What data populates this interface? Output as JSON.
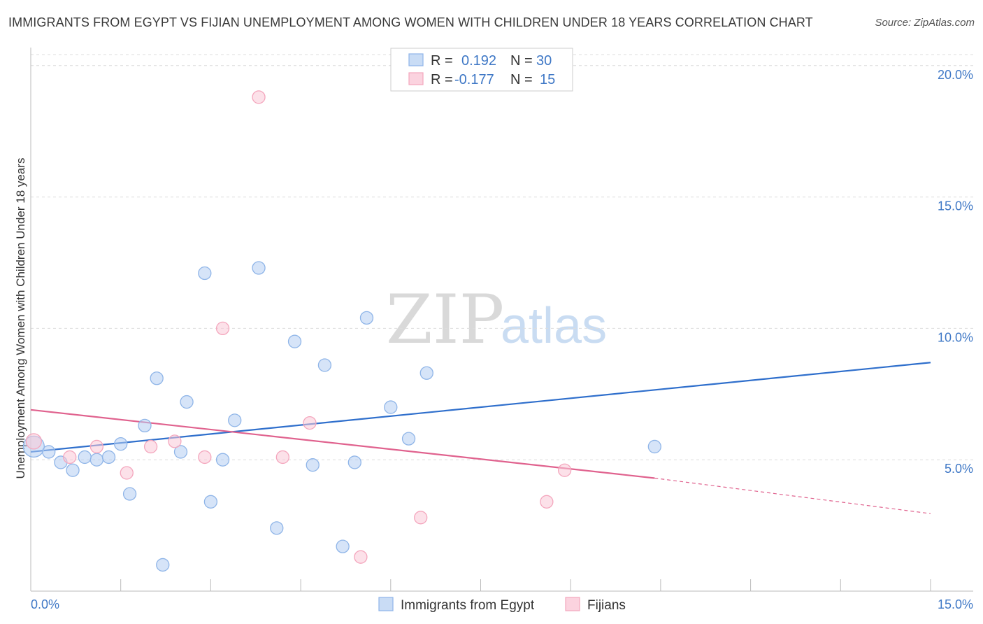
{
  "chart_data": {
    "type": "scatter",
    "title": "IMMIGRANTS FROM EGYPT VS FIJIAN UNEMPLOYMENT AMONG WOMEN WITH CHILDREN UNDER 18 YEARS CORRELATION CHART",
    "source": "Source: ZipAtlas.com",
    "xlabel": "",
    "ylabel": "Unemployment Among Women with Children Under 18 years",
    "xlim": [
      0,
      15
    ],
    "ylim": [
      0,
      20.5
    ],
    "x_tick_labels": [
      "0.0%",
      "15.0%"
    ],
    "y_ticks": [
      5,
      10,
      15,
      20
    ],
    "y_tick_labels": [
      "5.0%",
      "10.0%",
      "15.0%",
      "20.0%"
    ],
    "grid": "horizontal dashed",
    "legend_placement": "top-center",
    "series": [
      {
        "name": "Immigrants from Egypt",
        "color": "#8fb5e8",
        "line_color": "#2f6fcc",
        "r": "0.192",
        "n": "30",
        "points": [
          [
            0.05,
            5.5
          ],
          [
            0.3,
            5.3
          ],
          [
            0.5,
            4.9
          ],
          [
            0.7,
            4.6
          ],
          [
            0.9,
            5.1
          ],
          [
            1.1,
            5.0
          ],
          [
            1.3,
            5.1
          ],
          [
            1.5,
            5.6
          ],
          [
            1.65,
            3.7
          ],
          [
            1.9,
            6.3
          ],
          [
            2.1,
            8.1
          ],
          [
            2.2,
            1.0
          ],
          [
            2.5,
            5.3
          ],
          [
            2.6,
            7.2
          ],
          [
            2.9,
            12.1
          ],
          [
            3.0,
            3.4
          ],
          [
            3.2,
            5.0
          ],
          [
            3.4,
            6.5
          ],
          [
            3.8,
            12.3
          ],
          [
            4.1,
            2.4
          ],
          [
            4.4,
            9.5
          ],
          [
            4.7,
            4.8
          ],
          [
            4.9,
            8.6
          ],
          [
            5.2,
            1.7
          ],
          [
            5.4,
            4.9
          ],
          [
            5.6,
            10.4
          ],
          [
            6.0,
            7.0
          ],
          [
            6.3,
            5.8
          ],
          [
            6.6,
            8.3
          ],
          [
            10.4,
            5.5
          ]
        ],
        "trend": {
          "x": [
            0,
            15
          ],
          "y": [
            5.3,
            8.7
          ]
        }
      },
      {
        "name": "Fijians",
        "color": "#f4a6bd",
        "line_color": "#e0628e",
        "r": "-0.177",
        "n": "15",
        "points": [
          [
            0.05,
            5.7
          ],
          [
            0.65,
            5.1
          ],
          [
            1.1,
            5.5
          ],
          [
            1.6,
            4.5
          ],
          [
            2.0,
            5.5
          ],
          [
            2.4,
            5.7
          ],
          [
            2.9,
            5.1
          ],
          [
            3.2,
            10.0
          ],
          [
            3.8,
            18.8
          ],
          [
            4.2,
            5.1
          ],
          [
            4.65,
            6.4
          ],
          [
            5.5,
            1.3
          ],
          [
            6.5,
            2.8
          ],
          [
            8.6,
            3.4
          ],
          [
            8.9,
            4.6
          ]
        ],
        "trend": {
          "x": [
            0,
            10.4
          ],
          "y": [
            6.9,
            4.3
          ]
        },
        "trend_dashed": {
          "x": [
            10.4,
            15
          ],
          "y": [
            4.3,
            2.95
          ]
        }
      }
    ]
  },
  "legend": {
    "r_label": "R =",
    "n_label": "N ="
  },
  "watermark": {
    "zip": "ZIP",
    "atlas": "atlas"
  }
}
